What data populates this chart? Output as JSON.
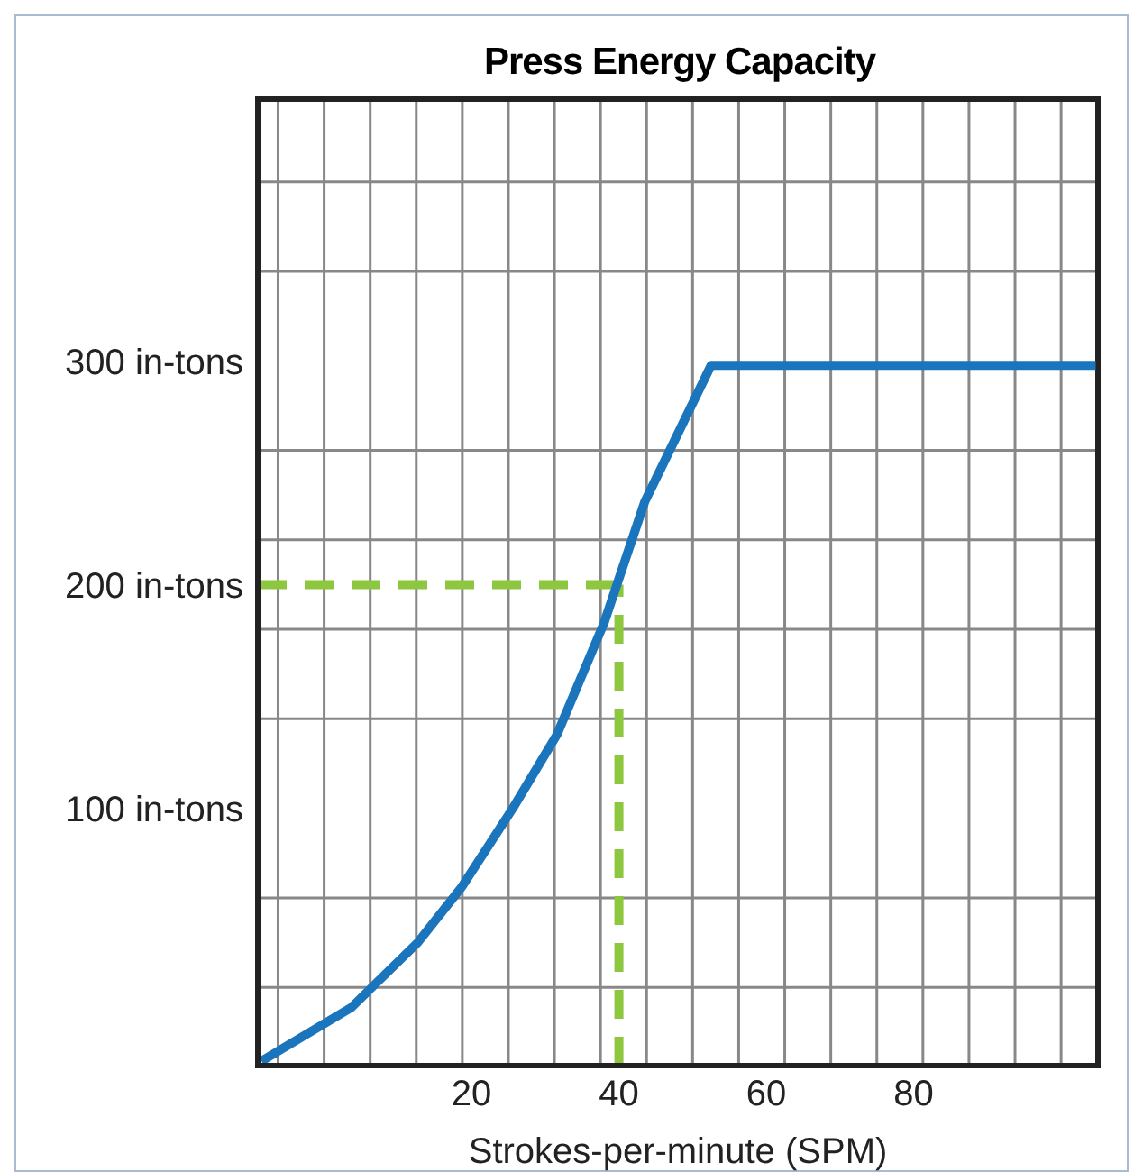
{
  "chart_data": {
    "type": "line",
    "title": "Press Energy Capacity",
    "xlabel": "Strokes-per-minute (SPM)",
    "x": [
      -8.5,
      3.7,
      12.7,
      18.7,
      25.6,
      31.6,
      38,
      43.5,
      52.5,
      104.7
    ],
    "series": [
      {
        "color": "#1a75bc",
        "values": [
          -13,
          11,
          40,
          65,
          100,
          133,
          183,
          237,
          298,
          298
        ]
      }
    ],
    "xlim": [
      -9,
      105
    ],
    "xticks": [
      {
        "value": -6.25,
        "label": null
      },
      {
        "value": 0,
        "label": null
      },
      {
        "value": 6.25,
        "label": null
      },
      {
        "value": 12.5,
        "label": null
      },
      {
        "value": 18.75,
        "label": null
      },
      20,
      {
        "value": 25,
        "label": null
      },
      {
        "value": 31.25,
        "label": null
      },
      {
        "value": 37.5,
        "label": null
      },
      40,
      {
        "value": 43.75,
        "label": null
      },
      {
        "value": 50,
        "label": null
      },
      {
        "value": 56.25,
        "label": null
      },
      60,
      {
        "value": 62.5,
        "label": null
      },
      {
        "value": 68.75,
        "label": null
      },
      {
        "value": 75,
        "label": null
      },
      80,
      {
        "value": 81.25,
        "label": null
      },
      {
        "value": 87.5,
        "label": null
      },
      {
        "value": 93.75,
        "label": null
      },
      {
        "value": 100,
        "label": null
      }
    ],
    "ylim": [
      -15,
      417
    ],
    "yticks": [
      {
        "value": 20,
        "label": null
      },
      {
        "value": 60,
        "label": null
      },
      {
        "value": 100,
        "label": "100 in-tons"
      },
      {
        "value": 140,
        "label": null
      },
      {
        "value": 180,
        "label": null
      },
      {
        "value": 200,
        "label": "200 in-tons"
      },
      {
        "value": 220,
        "label": null
      },
      {
        "value": 260,
        "label": null
      },
      {
        "value": 300,
        "label": "300 in-tons"
      },
      {
        "value": 340,
        "label": null
      },
      {
        "value": 380,
        "label": null
      }
    ],
    "ref_lines": [
      {
        "axis": "x",
        "value": 40,
        "color": "#8dc63f",
        "line_style": "dashed"
      },
      {
        "axis": "y",
        "value": 200,
        "color": "#8dc63f",
        "line_style": "dashed"
      }
    ],
    "grid": true,
    "marker": "none",
    "line_style": "solid"
  }
}
